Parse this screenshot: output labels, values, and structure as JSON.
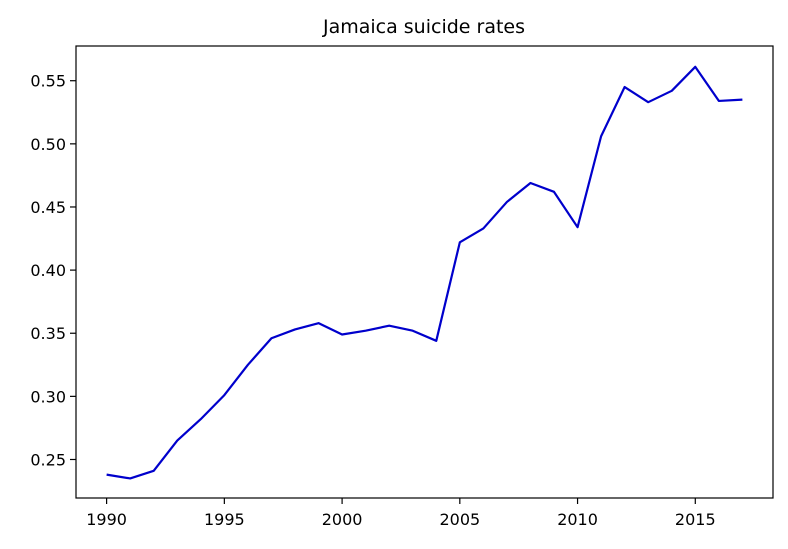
{
  "chart_data": {
    "type": "line",
    "title": "Jamaica suicide rates",
    "xlabel": "",
    "ylabel": "",
    "xlim": [
      1988.7,
      2018.3
    ],
    "ylim": [
      0.2195,
      0.5775
    ],
    "x_ticks": [
      1990,
      1995,
      2000,
      2005,
      2010,
      2015
    ],
    "y_ticks": [
      0.25,
      0.3,
      0.35,
      0.4,
      0.45,
      0.5,
      0.55
    ],
    "x_tick_labels": [
      "1990",
      "1995",
      "2000",
      "2005",
      "2010",
      "2015"
    ],
    "y_tick_labels": [
      "0.25",
      "0.30",
      "0.35",
      "0.40",
      "0.45",
      "0.50",
      "0.55"
    ],
    "grid": false,
    "line_color": "#0000cc",
    "series": [
      {
        "x": [
          1990,
          1991,
          1992,
          1993,
          1994,
          1995,
          1996,
          1997,
          1998,
          1999,
          2000,
          2001,
          2002,
          2003,
          2004,
          2005,
          2006,
          2007,
          2008,
          2009,
          2010,
          2011,
          2012,
          2013,
          2014,
          2015,
          2016,
          2017
        ],
        "values": [
          0.238,
          0.235,
          0.241,
          0.265,
          0.282,
          0.301,
          0.325,
          0.346,
          0.353,
          0.358,
          0.349,
          0.352,
          0.356,
          0.352,
          0.344,
          0.422,
          0.433,
          0.454,
          0.469,
          0.462,
          0.434,
          0.506,
          0.545,
          0.533,
          0.542,
          0.561,
          0.534,
          0.535
        ]
      }
    ]
  }
}
